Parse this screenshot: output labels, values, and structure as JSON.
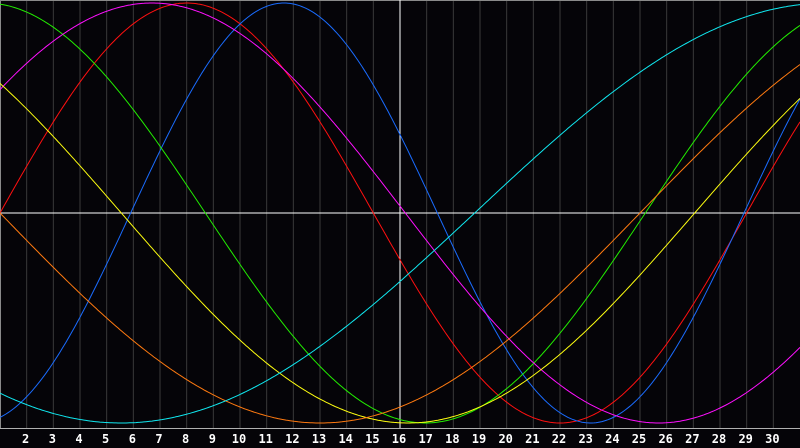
{
  "chart_data": {
    "type": "line",
    "title": "",
    "xlabel": "",
    "ylabel": "",
    "xlim": [
      1,
      31
    ],
    "ylim": [
      -1,
      1
    ],
    "x_tick_labels": [
      "2",
      "3",
      "4",
      "5",
      "6",
      "7",
      "8",
      "9",
      "10",
      "11",
      "12",
      "13",
      "14",
      "15",
      "16",
      "17",
      "18",
      "19",
      "20",
      "21",
      "22",
      "23",
      "24",
      "25",
      "26",
      "27",
      "28",
      "29",
      "30"
    ],
    "grid": true,
    "marker_day": 16,
    "background": "#050408",
    "grid_color": "#3a3a3a",
    "axis_color": "#ffffff",
    "series": [
      {
        "color": "#ff1010",
        "shape": "sine",
        "period_days": 28,
        "rising_zero_day": 1.0
      },
      {
        "color": "#1a6cff",
        "shape": "sine",
        "period_days": 23,
        "rising_zero_day": 5.9
      },
      {
        "color": "#22ee00",
        "shape": "sine",
        "period_days": 33,
        "rising_zero_day": -7.8
      },
      {
        "color": "#ff10ff",
        "shape": "sine",
        "period_days": 38,
        "rising_zero_day": -2.8
      },
      {
        "color": "#ffff10",
        "shape": "sine",
        "period_days": 43,
        "rising_zero_day": -15.95
      },
      {
        "color": "#ff7a10",
        "shape": "sine",
        "period_days": 48,
        "rising_zero_day": -23.0
      },
      {
        "color": "#10e8f0",
        "shape": "sine",
        "period_days": 53,
        "rising_zero_day": 18.8
      }
    ]
  }
}
